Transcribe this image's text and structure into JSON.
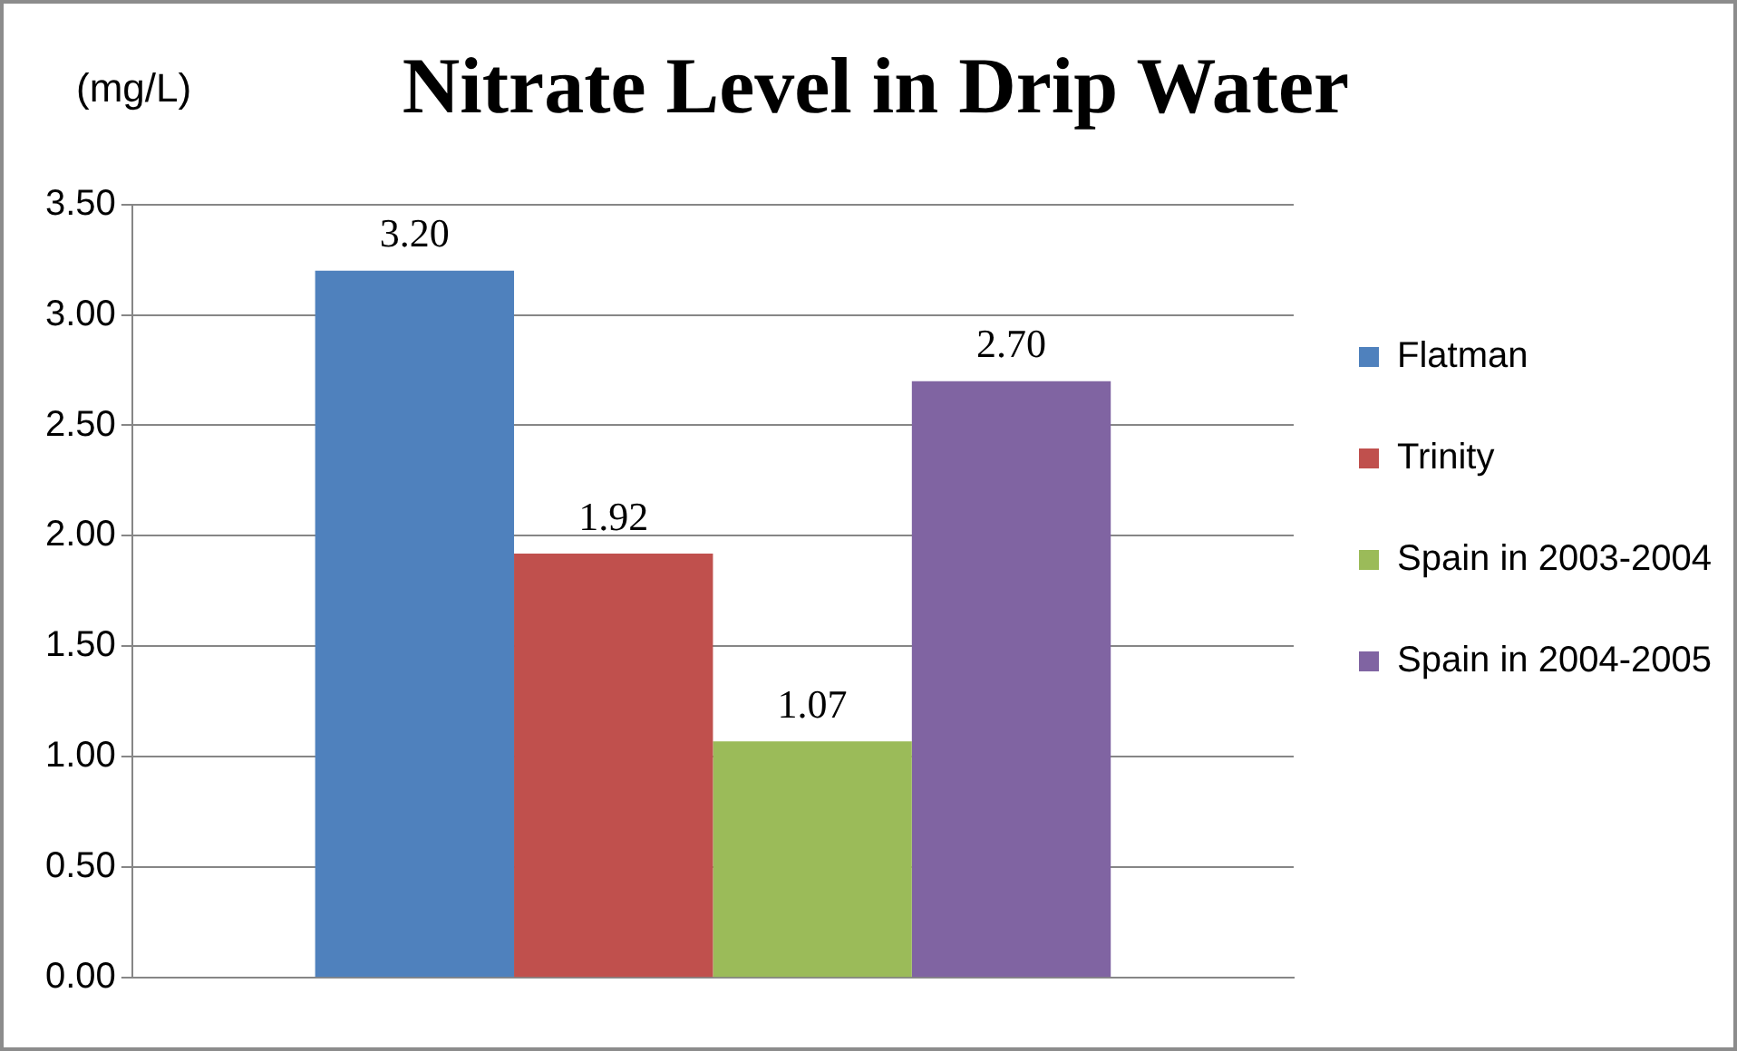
{
  "chart_data": {
    "type": "bar",
    "title": "Nitrate Level in Drip Water",
    "ylabel": "(mg/L)",
    "categories": [
      null
    ],
    "series": [
      {
        "name": "Flatman",
        "color": "#4f81bd",
        "values": [
          3.2
        ],
        "value_labels": [
          "3.20"
        ]
      },
      {
        "name": "Trinity",
        "color": "#c0504d",
        "values": [
          1.92
        ],
        "value_labels": [
          "1.92"
        ]
      },
      {
        "name": "Spain in 2003-2004",
        "color": "#9bbb59",
        "values": [
          1.07
        ],
        "value_labels": [
          "1.07"
        ]
      },
      {
        "name": "Spain in 2004-2005",
        "color": "#8064a2",
        "values": [
          2.7
        ],
        "value_labels": [
          "2.70"
        ]
      }
    ],
    "ylim": [
      0,
      3.5
    ],
    "yticks": [
      {
        "value": 0,
        "label": "0.00"
      },
      {
        "value": 0.5,
        "label": "0.50"
      },
      {
        "value": 1,
        "label": "1.00"
      },
      {
        "value": 1.5,
        "label": "1.50"
      },
      {
        "value": 2,
        "label": "2.00"
      },
      {
        "value": 2.5,
        "label": "2.50"
      },
      {
        "value": 3,
        "label": "3.00"
      },
      {
        "value": 3.5,
        "label": "3.50"
      }
    ],
    "grid": "y",
    "legend": "right"
  }
}
